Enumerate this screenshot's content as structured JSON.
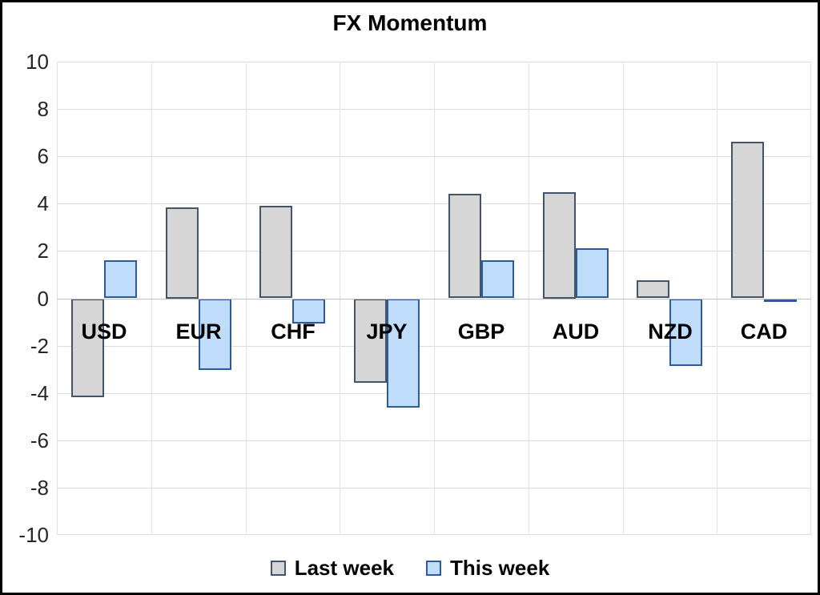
{
  "chart_data": {
    "type": "bar",
    "title": "FX Momentum",
    "categories": [
      "USD",
      "EUR",
      "CHF",
      "JPY",
      "GBP",
      "AUD",
      "NZD",
      "CAD"
    ],
    "series": [
      {
        "name": "Last week",
        "fill_color": "#d6d6d6",
        "border_color": "#44546a",
        "values": [
          -4.15,
          3.85,
          3.9,
          -3.55,
          4.4,
          4.5,
          0.75,
          6.6
        ]
      },
      {
        "name": "This week",
        "fill_color": "#bfdcfa",
        "border_color": "#2e5b97",
        "values": [
          1.6,
          -3.0,
          -1.05,
          -4.6,
          1.6,
          2.1,
          -2.85,
          -0.1
        ]
      }
    ],
    "ylim": [
      -10,
      10
    ],
    "yticks": [
      10,
      8,
      6,
      4,
      2,
      0,
      -2,
      -4,
      -6,
      -8,
      -10
    ],
    "xlabel": "",
    "ylabel": "",
    "grid": true,
    "legend_position": "bottom",
    "category_labels_below_zero_line": true
  },
  "colors": {
    "background": "#ffffff",
    "frame_border": "#000000",
    "gridline": "#dadada",
    "zero_line": "#c0c0c0",
    "vertical_gridline": "#e2e2e2",
    "tick_text": "#262626",
    "title_text": "#000000"
  }
}
